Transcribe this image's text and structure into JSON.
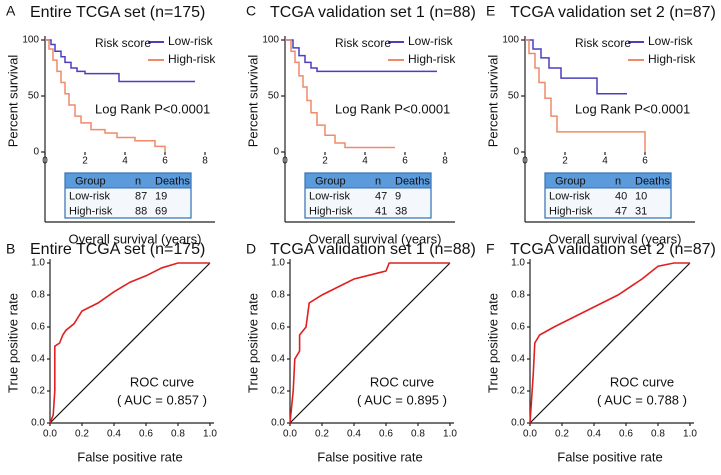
{
  "chart_data": [
    {
      "type": "line",
      "step": true,
      "panel": "A",
      "title": "Entire TCGA set (n=175)",
      "x_label": "Overall survival (years)",
      "y_label": "Percent survival",
      "xlim": [
        0,
        8
      ],
      "xticks": [
        0,
        2,
        4,
        6,
        8
      ],
      "ylim": [
        0,
        100
      ],
      "yticks": [
        0,
        50,
        100
      ],
      "legend_title": "Risk score",
      "annotation": "Log Rank P<0.0001",
      "series": [
        {
          "name": "Low-risk",
          "color": "#4b3fbf",
          "x": [
            0,
            0.3,
            0.3,
            0.5,
            0.5,
            0.8,
            0.8,
            1.0,
            1.0,
            1.3,
            1.3,
            1.6,
            1.6,
            2.0,
            2.0,
            3.7,
            3.7,
            7.5
          ],
          "values": [
            100,
            100,
            96,
            96,
            90,
            90,
            85,
            85,
            80,
            80,
            75,
            75,
            72,
            72,
            70,
            70,
            63,
            63
          ]
        },
        {
          "name": "High-risk",
          "color": "#f08a6a",
          "x": [
            0,
            0.2,
            0.2,
            0.4,
            0.4,
            0.6,
            0.6,
            0.8,
            0.8,
            1.0,
            1.0,
            1.2,
            1.2,
            1.5,
            1.5,
            1.8,
            1.8,
            2.3,
            2.3,
            3.0,
            3.0,
            3.6,
            3.6,
            4.5,
            4.5,
            5.5,
            5.5,
            6.0,
            6.0
          ],
          "values": [
            100,
            100,
            92,
            92,
            82,
            82,
            72,
            72,
            62,
            62,
            52,
            52,
            42,
            42,
            32,
            32,
            26,
            26,
            20,
            20,
            17,
            17,
            13,
            13,
            10,
            10,
            5,
            5,
            0
          ]
        }
      ],
      "table": {
        "columns": [
          "Group",
          "n",
          "Deaths"
        ],
        "rows": [
          [
            "Low-risk",
            87,
            19
          ],
          [
            "High-risk",
            88,
            69
          ]
        ]
      }
    },
    {
      "type": "line",
      "step": true,
      "panel": "C",
      "title": "TCGA validation set 1 (n=88)",
      "x_label": "Overall survival (years)",
      "y_label": "Percent survival",
      "xlim": [
        0,
        8
      ],
      "xticks": [
        0,
        2,
        4,
        6,
        8
      ],
      "ylim": [
        0,
        100
      ],
      "yticks": [
        0,
        50,
        100
      ],
      "legend_title": "Risk score",
      "annotation": "Log Rank P<0.0001",
      "series": [
        {
          "name": "Low-risk",
          "color": "#4b3fbf",
          "x": [
            0,
            0.4,
            0.4,
            0.7,
            0.7,
            1.0,
            1.0,
            1.3,
            1.3,
            1.6,
            1.6,
            7.6
          ],
          "values": [
            100,
            100,
            93,
            93,
            86,
            86,
            80,
            80,
            75,
            75,
            72,
            72
          ]
        },
        {
          "name": "High-risk",
          "color": "#f08a6a",
          "x": [
            0,
            0.3,
            0.3,
            0.5,
            0.5,
            0.7,
            0.7,
            0.9,
            0.9,
            1.1,
            1.1,
            1.3,
            1.3,
            1.6,
            1.6,
            2.0,
            2.0,
            2.5,
            2.5,
            3.0,
            3.0,
            5.5
          ],
          "values": [
            100,
            100,
            90,
            90,
            80,
            80,
            68,
            68,
            58,
            58,
            46,
            46,
            35,
            35,
            24,
            24,
            15,
            15,
            8,
            8,
            4,
            4
          ]
        }
      ],
      "table": {
        "columns": [
          "Group",
          "n",
          "Deaths"
        ],
        "rows": [
          [
            "Low-risk",
            47,
            9
          ],
          [
            "High-risk",
            41,
            38
          ]
        ]
      }
    },
    {
      "type": "line",
      "step": true,
      "panel": "E",
      "title": "TCGA validation set 2 (n=87)",
      "x_label": "Overall survival (years)",
      "y_label": "Percent survival",
      "xlim": [
        0,
        6.4
      ],
      "xticks": [
        0,
        2,
        4,
        6
      ],
      "ylim": [
        0,
        100
      ],
      "yticks": [
        0,
        50,
        100
      ],
      "legend_title": "Risk score",
      "annotation": "Log Rank P<0.0001",
      "series": [
        {
          "name": "Low-risk",
          "color": "#4b3fbf",
          "x": [
            0,
            0.4,
            0.4,
            0.8,
            0.8,
            1.2,
            1.2,
            1.8,
            1.8,
            3.6,
            3.6,
            5.1
          ],
          "values": [
            100,
            100,
            92,
            92,
            84,
            84,
            75,
            75,
            66,
            66,
            52,
            52
          ]
        },
        {
          "name": "High-risk",
          "color": "#f08a6a",
          "x": [
            0,
            0.2,
            0.2,
            0.5,
            0.5,
            0.7,
            0.7,
            1.0,
            1.0,
            1.3,
            1.3,
            1.6,
            1.6,
            6.0,
            6.0
          ],
          "values": [
            100,
            100,
            88,
            88,
            75,
            75,
            62,
            62,
            48,
            48,
            32,
            32,
            18,
            18,
            0
          ]
        }
      ],
      "table": {
        "columns": [
          "Group",
          "n",
          "Deaths"
        ],
        "rows": [
          [
            "Low-risk",
            40,
            10
          ],
          [
            "High-risk",
            47,
            31
          ]
        ]
      }
    },
    {
      "type": "line",
      "step": false,
      "reference_line": true,
      "panel": "B",
      "title": "Entire TCGA set (n=175)",
      "x_label": "False positive rate",
      "y_label": "True positive rate",
      "xlim": [
        0,
        1
      ],
      "xticks": [
        {
          "value": 0,
          "label": "0.0"
        },
        0.2,
        0.4,
        0.6,
        0.8,
        {
          "value": 1,
          "label": "1.0"
        }
      ],
      "ylim": [
        0,
        1
      ],
      "yticks": [
        {
          "value": 0,
          "label": "0.0"
        },
        0.2,
        0.4,
        0.6,
        0.8,
        {
          "value": 1,
          "label": "1.0"
        }
      ],
      "annotation": "ROC curve",
      "auc_label": "( AUC =  0.857 )",
      "series": [
        {
          "color": "#e02020",
          "x": [
            0,
            0.02,
            0.03,
            0.03,
            0.06,
            0.08,
            0.1,
            0.15,
            0.2,
            0.3,
            0.4,
            0.5,
            0.6,
            0.7,
            0.8,
            1.0
          ],
          "values": [
            0,
            0.05,
            0.2,
            0.48,
            0.5,
            0.55,
            0.58,
            0.62,
            0.7,
            0.75,
            0.82,
            0.88,
            0.92,
            0.97,
            1.0,
            1.0
          ]
        }
      ]
    },
    {
      "type": "line",
      "step": false,
      "reference_line": true,
      "panel": "D",
      "title": "TCGA validation set 1 (n=88)",
      "x_label": "False positive rate",
      "y_label": "True positive rate",
      "xlim": [
        0,
        1
      ],
      "xticks": [
        {
          "value": 0,
          "label": "0.0"
        },
        0.2,
        0.4,
        0.6,
        0.8,
        {
          "value": 1,
          "label": "1.0"
        }
      ],
      "ylim": [
        0,
        1
      ],
      "yticks": [
        {
          "value": 0,
          "label": "0.0"
        },
        0.2,
        0.4,
        0.6,
        0.8,
        {
          "value": 1,
          "label": "1.0"
        }
      ],
      "annotation": "ROC curve",
      "auc_label": "( AUC =  0.895 )",
      "series": [
        {
          "color": "#e02020",
          "x": [
            0,
            0.02,
            0.03,
            0.06,
            0.06,
            0.1,
            0.12,
            0.2,
            0.3,
            0.4,
            0.6,
            0.62,
            1.0
          ],
          "values": [
            0,
            0.2,
            0.4,
            0.45,
            0.55,
            0.6,
            0.75,
            0.8,
            0.85,
            0.9,
            0.95,
            1.0,
            1.0
          ]
        }
      ]
    },
    {
      "type": "line",
      "step": false,
      "reference_line": true,
      "panel": "F",
      "title": "TCGA validation set 2 (n=87)",
      "x_label": "False positive rate",
      "y_label": "True positive rate",
      "xlim": [
        0,
        1
      ],
      "xticks": [
        {
          "value": 0,
          "label": "0.0"
        },
        0.2,
        0.4,
        0.6,
        0.8,
        {
          "value": 1,
          "label": "1.0"
        }
      ],
      "ylim": [
        0,
        1
      ],
      "yticks": [
        {
          "value": 0,
          "label": "0.0"
        },
        0.2,
        0.4,
        0.6,
        0.8,
        {
          "value": 1,
          "label": "1.0"
        }
      ],
      "annotation": "ROC curve",
      "auc_label": "( AUC =  0.788 )",
      "series": [
        {
          "color": "#e02020",
          "x": [
            0,
            0.02,
            0.03,
            0.06,
            0.15,
            0.25,
            0.35,
            0.45,
            0.55,
            0.7,
            0.8,
            0.9,
            1.0
          ],
          "values": [
            0,
            0.3,
            0.5,
            0.55,
            0.6,
            0.65,
            0.7,
            0.75,
            0.8,
            0.9,
            0.98,
            1.0,
            1.0
          ]
        }
      ]
    }
  ]
}
